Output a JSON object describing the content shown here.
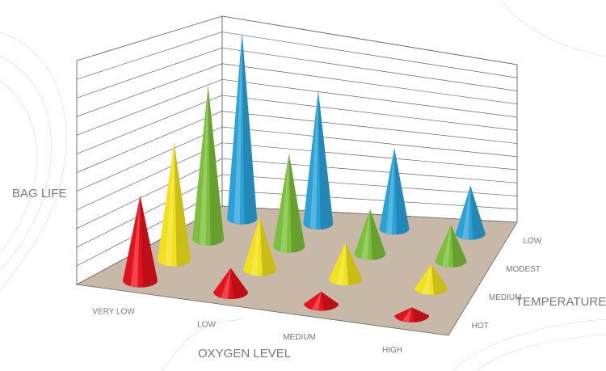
{
  "chart_data": {
    "type": "cone3d",
    "y_label": "BAG LIFE",
    "x_label": "OXYGEN LEVEL",
    "z_label": "TEMPERATURE",
    "categories": [
      "VERY LOW",
      "LOW",
      "MEDIUM",
      "HIGH"
    ],
    "series": [
      {
        "name": "LOW",
        "color": "#2aa2d8",
        "values": [
          230,
          165,
          100,
          60
        ]
      },
      {
        "name": "MODEST",
        "color": "#7cbf3a",
        "values": [
          190,
          115,
          55,
          45
        ]
      },
      {
        "name": "MEDIUM",
        "color": "#f2e21c",
        "values": [
          145,
          65,
          45,
          30
        ]
      },
      {
        "name": "HOT",
        "color": "#e3121b",
        "values": [
          105,
          30,
          15,
          10
        ]
      }
    ]
  }
}
